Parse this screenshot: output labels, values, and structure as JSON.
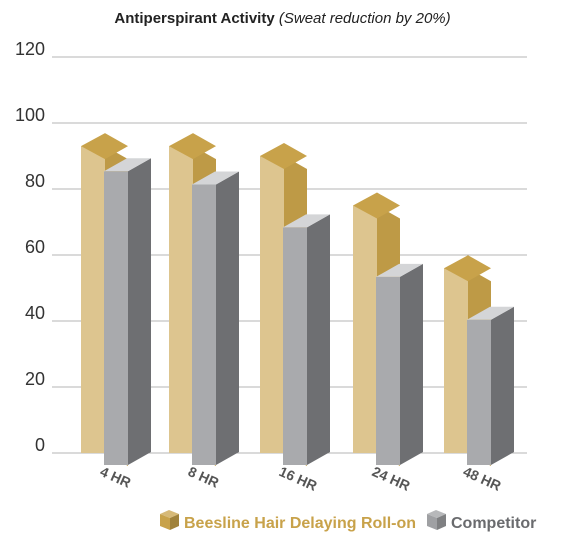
{
  "chart_data": {
    "type": "bar",
    "title": "Antiperspirant Activity",
    "subtitle": "(Sweat reduction by 20%)",
    "categories": [
      "4 HR",
      "8 HR",
      "16 HR",
      "24 HR",
      "48 HR"
    ],
    "series": [
      {
        "name": "Beesline Hair Delaying Roll-on",
        "values": [
          93,
          93,
          90,
          75,
          56
        ],
        "color": "#c8a24a"
      },
      {
        "name": "Competitor",
        "values": [
          89,
          85,
          72,
          57,
          44
        ],
        "color": "#a9aaad"
      }
    ],
    "ylim": [
      0,
      120
    ],
    "yticks": [
      "0",
      "20",
      "40",
      "60",
      "80",
      "100",
      "120"
    ],
    "grid": true,
    "legend_position": "bottom-right",
    "style": "3d-column"
  }
}
